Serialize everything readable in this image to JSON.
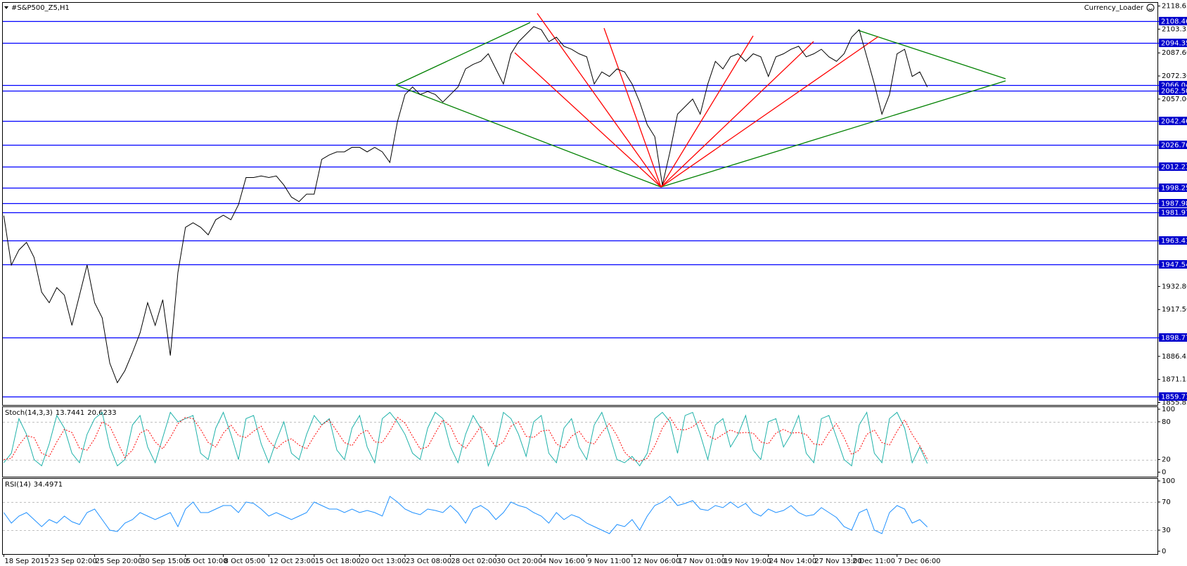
{
  "chart_data": [
    {
      "type": "line",
      "title": "#S&P500_Z5,H1",
      "indicator": "Currency_Loader",
      "color": "#000000",
      "categories": [
        "18 Sep 2015",
        null,
        null,
        null,
        null,
        null,
        "23 Sep 02:00",
        null,
        null,
        null,
        null,
        null,
        "25 Sep 20:00",
        null,
        null,
        null,
        null,
        null,
        "30 Sep 15:00",
        null,
        null,
        null,
        null,
        null,
        "5 Oct 10:00",
        null,
        null,
        null,
        null,
        "8 Oct 05:00",
        null,
        null,
        null,
        null,
        null,
        "12 Oct 23:00",
        null,
        null,
        null,
        null,
        null,
        "15 Oct 18:00",
        null,
        null,
        null,
        null,
        null,
        "20 Oct 13:00",
        null,
        null,
        null,
        null,
        null,
        "23 Oct 08:00",
        null,
        null,
        null,
        null,
        null,
        "28 Oct 02:00",
        null,
        null,
        null,
        null,
        null,
        "30 Oct 20:00",
        null,
        null,
        null,
        null,
        null,
        "4 Nov 16:00",
        null,
        null,
        null,
        null,
        null,
        "9 Nov 11:00",
        null,
        null,
        null,
        null,
        null,
        "12 Nov 06:00",
        null,
        null,
        null,
        null,
        null,
        "17 Nov 01:00",
        null,
        null,
        null,
        null,
        null,
        "19 Nov 19:00",
        null,
        null,
        null,
        null,
        null,
        "24 Nov 14:00",
        null,
        null,
        null,
        null,
        null,
        "27 Nov 13:00",
        null,
        null,
        null,
        null,
        "2 Dec 11:00",
        null,
        null,
        null,
        null,
        null,
        "7 Dec 06:00",
        null,
        null,
        null,
        null
      ],
      "values": [
        1979.7,
        1947,
        1957,
        1962,
        1952,
        1929,
        1922,
        1932,
        1927,
        1907,
        1927,
        1947,
        1922,
        1912,
        1882,
        1869,
        1877,
        1889,
        1902,
        1922,
        1907,
        1924,
        1887,
        1942,
        1972,
        1975,
        1972,
        1967,
        1977,
        1980,
        1977,
        1987,
        2005,
        2005,
        2006,
        2005,
        2006,
        2000,
        1992,
        1989,
        1994,
        1994,
        2017,
        2020,
        2022,
        2022,
        2025,
        2025,
        2022,
        2025,
        2022,
        2015,
        2042,
        2060,
        2065,
        2060,
        2062,
        2060,
        2055,
        2060,
        2065,
        2077,
        2080,
        2082,
        2087,
        2077,
        2067,
        2087,
        2095,
        2100,
        2105,
        2103,
        2095,
        2098,
        2092,
        2090,
        2087,
        2085,
        2067,
        2075,
        2072,
        2077,
        2075,
        2067,
        2055,
        2040,
        2032,
        2000,
        2022,
        2047,
        2052,
        2057,
        2047,
        2067,
        2082,
        2077,
        2085,
        2087,
        2082,
        2087,
        2085,
        2072,
        2085,
        2087,
        2090,
        2092,
        2085,
        2087,
        2090,
        2085,
        2082,
        2087,
        2098,
        2103,
        2085,
        2067,
        2047,
        2060,
        2087,
        2090,
        2072,
        2075,
        2065
      ],
      "ylim": [
        1855.85,
        2118.65
      ],
      "yticks": [
        2118.65,
        2103.35,
        {
          "value": 2087.6,
          "label": "2087.60"
        },
        {
          "value": 2072.3,
          "label": "2072.30"
        },
        {
          "value": 2057,
          "label": "2057.00"
        },
        {
          "value": 1932.8,
          "label": "1932.80"
        },
        {
          "value": 1917.5,
          "label": "1917.50"
        },
        1886.45,
        1871.15,
        1855.85
      ],
      "levels": [
        2108.46,
        2094.35,
        2066.04,
        {
          "value": 2062.5,
          "label": "2062.50"
        },
        2042.46,
        2026.76,
        2012.23,
        1998.25,
        1987.98,
        1981.97,
        1963.41,
        1947.54,
        1898.77,
        1859.71
      ],
      "level_color": "#0000ff"
    },
    {
      "type": "line",
      "title": "Stoch(14,3,3)",
      "series": [
        {
          "color": "#20b2aa",
          "values": [
            15,
            30,
            85,
            60,
            20,
            10,
            45,
            90,
            70,
            30,
            15,
            60,
            85,
            95,
            40,
            10,
            20,
            75,
            90,
            40,
            15,
            55,
            95,
            80,
            85,
            90,
            30,
            20,
            70,
            95,
            60,
            20,
            85,
            90,
            45,
            15,
            50,
            80,
            30,
            20,
            60,
            90,
            75,
            85,
            35,
            20,
            70,
            90,
            40,
            15,
            85,
            95,
            80,
            60,
            30,
            20,
            70,
            95,
            85,
            40,
            15,
            60,
            90,
            70,
            10,
            40,
            95,
            85,
            60,
            25,
            80,
            90,
            30,
            15,
            70,
            85,
            40,
            20,
            75,
            95,
            60,
            20,
            15,
            25,
            10,
            30,
            85,
            95,
            80,
            30,
            90,
            95,
            60,
            20,
            75,
            85,
            40,
            60,
            90,
            35,
            20,
            80,
            85,
            40,
            60,
            90,
            30,
            15,
            85,
            90,
            55,
            20,
            10,
            75,
            95,
            30,
            15,
            85,
            95,
            70,
            15,
            40,
            13.7441
          ]
        },
        {
          "color": "#ff0000",
          "dashed": true,
          "values": [
            20,
            22,
            43,
            58,
            55,
            30,
            25,
            48,
            68,
            63,
            38,
            35,
            53,
            80,
            73,
            48,
            23,
            35,
            62,
            68,
            48,
            37,
            55,
            77,
            87,
            85,
            68,
            47,
            40,
            62,
            75,
            58,
            55,
            65,
            73,
            50,
            37,
            48,
            53,
            43,
            37,
            57,
            75,
            83,
            65,
            47,
            42,
            60,
            67,
            48,
            47,
            65,
            87,
            78,
            57,
            37,
            40,
            62,
            83,
            73,
            47,
            38,
            55,
            73,
            57,
            40,
            48,
            73,
            80,
            57,
            55,
            65,
            67,
            45,
            38,
            57,
            65,
            48,
            45,
            63,
            77,
            58,
            32,
            20,
            17,
            22,
            42,
            70,
            87,
            68,
            67,
            72,
            82,
            58,
            52,
            60,
            67,
            62,
            63,
            62,
            48,
            45,
            62,
            68,
            62,
            63,
            60,
            45,
            43,
            63,
            77,
            55,
            28,
            35,
            60,
            67,
            47,
            43,
            65,
            83,
            60,
            42,
            20.6233
          ]
        }
      ],
      "ylim": [
        0,
        100
      ],
      "yticks": [
        100,
        80,
        20,
        0
      ],
      "levels": [
        80,
        20
      ],
      "level_color": "#c0c0c0"
    },
    {
      "type": "line",
      "title": "RSI(14)",
      "series": [
        {
          "color": "#1e90ff",
          "values": [
            55,
            40,
            50,
            55,
            45,
            35,
            45,
            40,
            50,
            42,
            38,
            55,
            60,
            45,
            30,
            28,
            40,
            45,
            55,
            50,
            45,
            50,
            55,
            35,
            60,
            70,
            55,
            55,
            60,
            65,
            65,
            55,
            70,
            68,
            60,
            50,
            55,
            50,
            45,
            50,
            55,
            70,
            65,
            60,
            60,
            55,
            60,
            55,
            58,
            55,
            50,
            78,
            70,
            60,
            55,
            52,
            60,
            58,
            55,
            65,
            55,
            40,
            60,
            65,
            58,
            45,
            55,
            70,
            65,
            62,
            55,
            50,
            40,
            55,
            45,
            52,
            48,
            40,
            35,
            30,
            25,
            38,
            35,
            45,
            30,
            50,
            65,
            70,
            78,
            65,
            68,
            72,
            60,
            58,
            65,
            62,
            70,
            62,
            68,
            55,
            50,
            60,
            55,
            58,
            65,
            55,
            50,
            52,
            62,
            55,
            48,
            35,
            30,
            55,
            60,
            30,
            25,
            55,
            65,
            60,
            40,
            45,
            34.4971
          ]
        }
      ],
      "ylim": [
        0,
        100
      ],
      "yticks": [
        100,
        70,
        30,
        0
      ],
      "levels": [
        70,
        30
      ],
      "level_color": "#c0c0c0"
    }
  ]
}
